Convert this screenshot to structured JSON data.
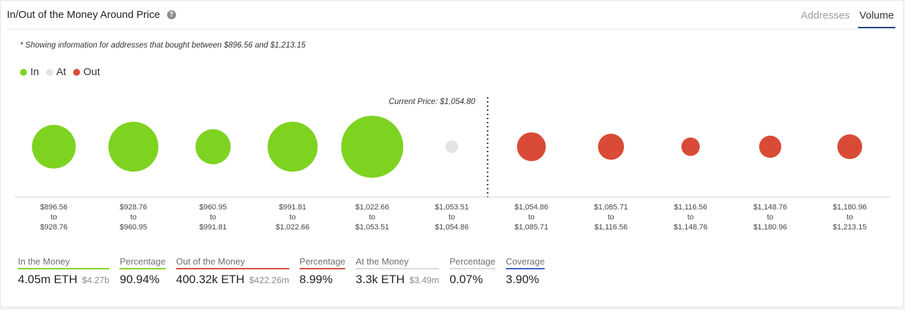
{
  "header": {
    "title": "In/Out of the Money Around Price",
    "help_icon": "question-mark-icon",
    "tabs": [
      {
        "label": "Addresses",
        "active": false
      },
      {
        "label": "Volume",
        "active": true
      }
    ]
  },
  "note": "* Showing information for addresses that bought between $896.56 and $1,213.15",
  "legend": [
    {
      "label": "In",
      "color": "#7ed321"
    },
    {
      "label": "At",
      "color": "#e2e3e5"
    },
    {
      "label": "Out",
      "color": "#d94b36"
    }
  ],
  "chart_data": {
    "type": "scatter",
    "current_price_label": "Current Price: $1,054.80",
    "current_price": 1054.8,
    "buckets": [
      {
        "low": "$896.56",
        "high": "$928.76",
        "status": "in",
        "volume": 0.62
      },
      {
        "low": "$928.76",
        "high": "$960.95",
        "status": "in",
        "volume": 0.81
      },
      {
        "low": "$960.95",
        "high": "$991.81",
        "status": "in",
        "volume": 0.4
      },
      {
        "low": "$991.81",
        "high": "$1,022.66",
        "status": "in",
        "volume": 0.81
      },
      {
        "low": "$1,022.66",
        "high": "$1,053.51",
        "status": "in",
        "volume": 1.25
      },
      {
        "low": "$1,053.51",
        "high": "$1,054.86",
        "status": "at",
        "volume": 0.05
      },
      {
        "low": "$1,054.86",
        "high": "$1,085.71",
        "status": "out",
        "volume": 0.27
      },
      {
        "low": "$1,085.71",
        "high": "$1,116.56",
        "status": "out",
        "volume": 0.22
      },
      {
        "low": "$1,116.56",
        "high": "$1,148.76",
        "status": "out",
        "volume": 0.11
      },
      {
        "low": "$1,148.76",
        "high": "$1,180.96",
        "status": "out",
        "volume": 0.16
      },
      {
        "low": "$1,180.96",
        "high": "$1,213.15",
        "status": "out",
        "volume": 0.2
      }
    ],
    "to_word": "to"
  },
  "stats": [
    {
      "label": "In the Money",
      "value": "4.05m ETH",
      "sub": "$4.27b",
      "color": "#7ed321"
    },
    {
      "label": "Percentage",
      "value": "90.94%",
      "sub": "",
      "color": "#7ed321"
    },
    {
      "label": "Out of the Money",
      "value": "400.32k ETH",
      "sub": "$422.26m",
      "color": "#d94b36"
    },
    {
      "label": "Percentage",
      "value": "8.99%",
      "sub": "",
      "color": "#d94b36"
    },
    {
      "label": "At the Money",
      "value": "3.3k ETH",
      "sub": "$3.49m",
      "color": "#d8d9dc"
    },
    {
      "label": "Percentage",
      "value": "0.07%",
      "sub": "",
      "color": "#d8d9dc"
    },
    {
      "label": "Coverage",
      "value": "3.90%",
      "sub": "",
      "color": "#3b5fc0"
    }
  ]
}
